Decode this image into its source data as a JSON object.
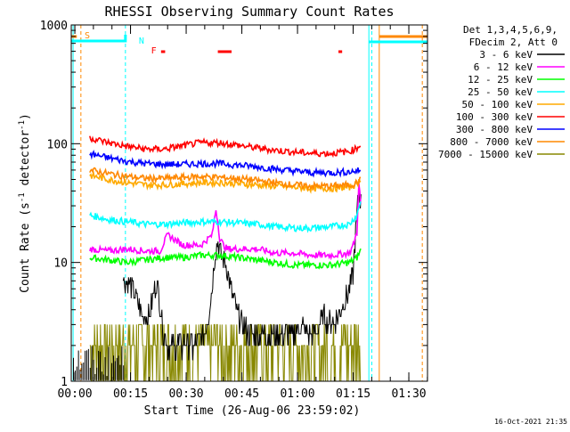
{
  "chart_data": {
    "type": "line",
    "title": "RHESSI Observing Summary Count Rates",
    "xlabel": "Start Time (26-Aug-06 23:59:02)",
    "ylabel": "Count Rate (s⁻¹ detector⁻¹)",
    "ylabel_parts": [
      "Count Rate (s",
      "-1",
      " detector",
      "-1",
      ")"
    ],
    "yscale": "log",
    "ylim": [
      1,
      1000
    ],
    "xlim_minutes": [
      0,
      96
    ],
    "x_ticks": [
      {
        "minutes": 0.97,
        "label": "00:00"
      },
      {
        "minutes": 15.97,
        "label": "00:15"
      },
      {
        "minutes": 30.97,
        "label": "00:30"
      },
      {
        "minutes": 45.97,
        "label": "00:45"
      },
      {
        "minutes": 60.97,
        "label": "01:00"
      },
      {
        "minutes": 75.97,
        "label": "01:15"
      },
      {
        "minutes": 90.97,
        "label": "01:30"
      }
    ],
    "y_ticks": [
      {
        "value": 1,
        "label": "1"
      },
      {
        "value": 10,
        "label": "10"
      },
      {
        "value": 100,
        "label": "100"
      },
      {
        "value": 1000,
        "label": "1000"
      }
    ],
    "legend_header": [
      "Det 1,3,4,5,6,9,",
      "FDecim 2, Att 0"
    ],
    "legend_placement": "right",
    "series": [
      {
        "name": "3 - 6 keV",
        "color": "#000000",
        "x": [
          14,
          16,
          18,
          19,
          20,
          21,
          22,
          23,
          24,
          25,
          26,
          28,
          30,
          32,
          34,
          36,
          37,
          38,
          38.8,
          39.5,
          40.5,
          41.5,
          43,
          44.5,
          46,
          48,
          50,
          52,
          54,
          56,
          58,
          60,
          62,
          64,
          66,
          68,
          70,
          72,
          74,
          75,
          76,
          76.5,
          77,
          77.5,
          78.2
        ],
        "y": [
          7,
          6.5,
          4.5,
          3.5,
          3.5,
          3.5,
          5,
          7,
          4,
          2.5,
          2,
          2,
          2,
          2,
          2,
          2.5,
          3.5,
          6,
          12,
          15,
          11,
          10,
          6,
          4,
          3,
          2.5,
          2.5,
          2.5,
          2.5,
          2.5,
          2.5,
          2.5,
          3,
          2.5,
          2.5,
          3.5,
          3,
          3.5,
          5,
          6,
          8,
          15,
          25,
          40,
          30
        ]
      },
      {
        "name": "6 - 12 keV",
        "color": "#ff00ff",
        "x": [
          5,
          10,
          15,
          20,
          24,
          26,
          30,
          35,
          38,
          39,
          40,
          41,
          42,
          45,
          50,
          55,
          60,
          65,
          70,
          75,
          76,
          77,
          77.5,
          78.2
        ],
        "y": [
          13,
          12.5,
          13,
          12.5,
          12.5,
          17,
          14,
          14,
          17,
          28,
          16,
          14,
          13,
          13,
          13,
          12,
          12,
          11.5,
          11.5,
          12,
          14,
          18,
          45,
          25
        ]
      },
      {
        "name": "12 - 25 keV",
        "color": "#00ff00",
        "x": [
          5,
          10,
          15,
          20,
          25,
          30,
          35,
          40,
          45,
          50,
          55,
          60,
          65,
          70,
          75,
          77,
          78.2
        ],
        "y": [
          11,
          10.5,
          10,
          10.5,
          11,
          11,
          11.5,
          11.5,
          11,
          10.5,
          10,
          9.5,
          9.5,
          9.5,
          10,
          11,
          13
        ]
      },
      {
        "name": "25 - 50 keV",
        "color": "#00ffff",
        "x": [
          5,
          10,
          15,
          20,
          25,
          30,
          35,
          40,
          45,
          50,
          55,
          60,
          65,
          70,
          75,
          77,
          78.2
        ],
        "y": [
          25,
          23,
          22,
          21,
          21,
          21.5,
          22,
          22,
          21.5,
          21,
          20,
          19.5,
          19.5,
          20,
          21,
          25,
          35
        ]
      },
      {
        "name": "50 - 100 keV",
        "color": "#ffaa00",
        "x": [
          5,
          10,
          15,
          20,
          25,
          30,
          35,
          40,
          45,
          50,
          55,
          60,
          65,
          70,
          75,
          77,
          78.2
        ],
        "y": [
          54,
          50,
          47,
          45,
          45,
          46,
          47,
          47,
          46,
          45,
          44,
          43,
          42,
          42,
          43,
          46,
          52
        ]
      },
      {
        "name": "100 - 300 keV",
        "color": "#ff0000",
        "x": [
          5,
          10,
          15,
          20,
          25,
          30,
          35,
          40,
          45,
          50,
          55,
          60,
          65,
          70,
          75,
          77,
          78.2
        ],
        "y": [
          112,
          102,
          95,
          90,
          90,
          96,
          102,
          102,
          97,
          92,
          88,
          85,
          83,
          83,
          86,
          92,
          100
        ]
      },
      {
        "name": "300 - 800 keV",
        "color": "#0000ff",
        "x": [
          5,
          10,
          15,
          20,
          25,
          30,
          35,
          40,
          45,
          50,
          55,
          60,
          65,
          70,
          75,
          77,
          78.2
        ],
        "y": [
          82,
          76,
          71,
          68,
          67,
          67,
          68,
          68,
          66,
          64,
          61,
          59,
          57,
          57,
          58,
          59,
          60
        ]
      },
      {
        "name": "800 - 7000 keV",
        "color": "#ff8800",
        "x": [
          5,
          10,
          15,
          20,
          25,
          30,
          35,
          40,
          45,
          50,
          55,
          60,
          65,
          70,
          75,
          77,
          78.2
        ],
        "y": [
          60,
          56,
          53,
          51,
          51,
          52,
          53,
          52,
          51,
          49,
          47,
          45,
          44,
          44,
          45,
          47,
          50
        ]
      },
      {
        "name": "7000 - 15000 keV",
        "color": "#888800",
        "x": [
          5,
          10,
          15,
          20,
          25,
          30,
          35,
          40,
          45,
          50,
          55,
          60,
          65,
          70,
          75,
          78.2
        ],
        "y": [
          2,
          2,
          1.5,
          2,
          2.5,
          2,
          2,
          2.5,
          2,
          2,
          2.5,
          2,
          2,
          2.5,
          2,
          2
        ]
      }
    ],
    "flags": [
      {
        "label": "S",
        "color": "#ff8800",
        "type": "attenuator-saa"
      },
      {
        "label": "N",
        "color": "#00ffff",
        "type": "night"
      },
      {
        "label": "F",
        "color": "#ff0000",
        "type": "flare"
      }
    ],
    "timestamp": "16-Oct-2021 21:35"
  }
}
